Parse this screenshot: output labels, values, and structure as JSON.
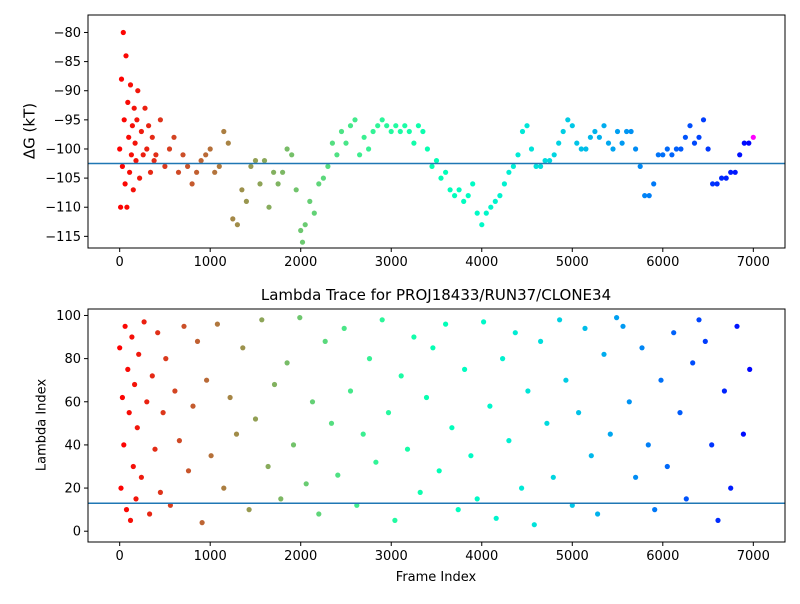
{
  "chart_data": [
    {
      "type": "scatter",
      "title": "",
      "xlabel": "",
      "ylabel": "ΔG (kT)",
      "xlim": [
        -350,
        7350
      ],
      "ylim": [
        -117,
        -77
      ],
      "xticks": [
        0,
        1000,
        2000,
        3000,
        4000,
        5000,
        6000,
        7000
      ],
      "yticks": [
        -115,
        -110,
        -105,
        -100,
        -95,
        -90,
        -85,
        -80
      ],
      "x_tick_labels": [
        "0",
        "1000",
        "2000",
        "3000",
        "4000",
        "5000",
        "6000",
        "7000"
      ],
      "y_tick_labels": [
        "−115",
        "−110",
        "−105",
        "−100",
        "−95",
        "−90",
        "−85",
        "−80"
      ],
      "hline": {
        "y": -102.5,
        "color": "#1f77b4"
      },
      "colormap": "rainbow (red at frame 0 → violet at frame 7000)",
      "grid": false,
      "series": [
        {
          "x": [
            0,
            10,
            20,
            30,
            40,
            50,
            60,
            70,
            80,
            90,
            100,
            110,
            120,
            130,
            140,
            150,
            160,
            170,
            180,
            190,
            200,
            220,
            240,
            260,
            280,
            300,
            320,
            340,
            360,
            380,
            400,
            450,
            500,
            550,
            600,
            650,
            700,
            750,
            800,
            850,
            900,
            950,
            1000,
            1050,
            1100,
            1150,
            1200,
            1250,
            1300,
            1350,
            1400,
            1450,
            1500,
            1550,
            1600,
            1650,
            1700,
            1750,
            1800,
            1850,
            1900,
            1950,
            2000,
            2020,
            2050,
            2100,
            2150,
            2200,
            2250,
            2300,
            2350,
            2400,
            2450,
            2500,
            2550,
            2600,
            2650,
            2700,
            2750,
            2800,
            2850,
            2900,
            2950,
            3000,
            3050,
            3100,
            3150,
            3200,
            3250,
            3300,
            3350,
            3400,
            3450,
            3500,
            3550,
            3600,
            3650,
            3700,
            3750,
            3800,
            3850,
            3900,
            3950,
            4000,
            4050,
            4100,
            4150,
            4200,
            4250,
            4300,
            4350,
            4400,
            4450,
            4500,
            4550,
            4600,
            4650,
            4700,
            4750,
            4800,
            4850,
            4900,
            4950,
            5000,
            5050,
            5100,
            5150,
            5200,
            5250,
            5300,
            5350,
            5400,
            5450,
            5500,
            5550,
            5600,
            5650,
            5700,
            5750,
            5800,
            5850,
            5900,
            5950,
            6000,
            6050,
            6100,
            6150,
            6200,
            6250,
            6300,
            6350,
            6400,
            6450,
            6500,
            6550,
            6600,
            6650,
            6700,
            6750,
            6800,
            6850,
            6900,
            6950,
            7000
          ],
          "y": [
            -100,
            -110,
            -88,
            -103,
            -80,
            -95,
            -106,
            -84,
            -110,
            -92,
            -98,
            -104,
            -89,
            -101,
            -96,
            -107,
            -93,
            -99,
            -102,
            -95,
            -90,
            -105,
            -97,
            -101,
            -93,
            -100,
            -96,
            -104,
            -98,
            -102,
            -101,
            -95,
            -103,
            -100,
            -98,
            -104,
            -101,
            -103,
            -106,
            -104,
            -102,
            -101,
            -100,
            -104,
            -103,
            -97,
            -99,
            -112,
            -113,
            -107,
            -109,
            -103,
            -102,
            -106,
            -102,
            -110,
            -104,
            -106,
            -104,
            -100,
            -101,
            -107,
            -114,
            -116,
            -113,
            -109,
            -111,
            -106,
            -105,
            -103,
            -99,
            -101,
            -97,
            -99,
            -96,
            -95,
            -101,
            -98,
            -100,
            -97,
            -96,
            -95,
            -96,
            -97,
            -96,
            -97,
            -96,
            -97,
            -99,
            -96,
            -97,
            -100,
            -103,
            -102,
            -105,
            -104,
            -107,
            -108,
            -107,
            -109,
            -108,
            -106,
            -111,
            -113,
            -111,
            -110,
            -109,
            -108,
            -106,
            -104,
            -103,
            -101,
            -97,
            -96,
            -100,
            -103,
            -103,
            -102,
            -102,
            -101,
            -99,
            -97,
            -95,
            -96,
            -99,
            -100,
            -100,
            -98,
            -97,
            -98,
            -96,
            -99,
            -100,
            -97,
            -99,
            -97,
            -97,
            -100,
            -103,
            -108,
            -108,
            -106,
            -101,
            -101,
            -100,
            -101,
            -100,
            -100,
            -98,
            -96,
            -99,
            -98,
            -95,
            -100,
            -106,
            -106,
            -105,
            -105,
            -104,
            -104,
            -101,
            -99,
            -99,
            -98
          ]
        }
      ]
    },
    {
      "type": "scatter",
      "title": "Lambda Trace for PROJ18433/RUN37/CLONE34",
      "xlabel": "Frame Index",
      "ylabel": "Lambda Index",
      "xlim": [
        -350,
        7350
      ],
      "ylim": [
        -5,
        103
      ],
      "xticks": [
        0,
        1000,
        2000,
        3000,
        4000,
        5000,
        6000,
        7000
      ],
      "yticks": [
        0,
        20,
        40,
        60,
        80,
        100
      ],
      "x_tick_labels": [
        "0",
        "1000",
        "2000",
        "3000",
        "4000",
        "5000",
        "6000",
        "7000"
      ],
      "y_tick_labels": [
        "0",
        "20",
        "40",
        "60",
        "80",
        "100"
      ],
      "hline": {
        "y": 13,
        "color": "#1f77b4"
      },
      "colormap": "rainbow (red at frame 0 → violet at frame 7000)",
      "grid": false,
      "series": [
        {
          "x": [
            0,
            15,
            30,
            45,
            60,
            75,
            90,
            105,
            120,
            135,
            150,
            165,
            180,
            195,
            210,
            240,
            270,
            300,
            330,
            360,
            390,
            420,
            450,
            480,
            510,
            560,
            610,
            660,
            710,
            760,
            810,
            860,
            910,
            960,
            1010,
            1080,
            1150,
            1220,
            1290,
            1360,
            1430,
            1500,
            1570,
            1640,
            1710,
            1780,
            1850,
            1920,
            1990,
            2060,
            2130,
            2200,
            2270,
            2340,
            2410,
            2480,
            2550,
            2620,
            2690,
            2760,
            2830,
            2900,
            2970,
            3040,
            3110,
            3180,
            3250,
            3320,
            3390,
            3460,
            3530,
            3600,
            3670,
            3740,
            3810,
            3880,
            3950,
            4020,
            4090,
            4160,
            4230,
            4300,
            4370,
            4440,
            4510,
            4580,
            4650,
            4720,
            4790,
            4860,
            4930,
            5000,
            5070,
            5140,
            5210,
            5280,
            5350,
            5420,
            5490,
            5560,
            5630,
            5700,
            5770,
            5840,
            5910,
            5980,
            6050,
            6120,
            6190,
            6260,
            6330,
            6400,
            6470,
            6540,
            6610,
            6680,
            6750,
            6820,
            6890,
            6960
          ],
          "y": [
            85,
            20,
            62,
            40,
            95,
            10,
            75,
            55,
            5,
            90,
            30,
            68,
            15,
            48,
            82,
            25,
            97,
            60,
            8,
            72,
            38,
            92,
            18,
            55,
            80,
            12,
            65,
            42,
            95,
            28,
            58,
            88,
            4,
            70,
            35,
            96,
            20,
            62,
            45,
            85,
            10,
            52,
            98,
            30,
            68,
            15,
            78,
            40,
            99,
            22,
            60,
            8,
            88,
            50,
            26,
            94,
            65,
            12,
            45,
            80,
            32,
            98,
            55,
            5,
            72,
            38,
            90,
            18,
            62,
            85,
            28,
            96,
            48,
            10,
            75,
            35,
            15,
            97,
            58,
            6,
            80,
            42,
            92,
            20,
            65,
            3,
            88,
            50,
            25,
            98,
            70,
            12,
            55,
            94,
            35,
            8,
            82,
            45,
            99,
            95,
            60,
            25,
            85,
            40,
            10,
            70,
            30,
            92,
            55,
            15,
            78,
            98,
            88,
            40,
            5,
            65,
            20,
            95,
            45,
            75
          ]
        }
      ]
    }
  ]
}
